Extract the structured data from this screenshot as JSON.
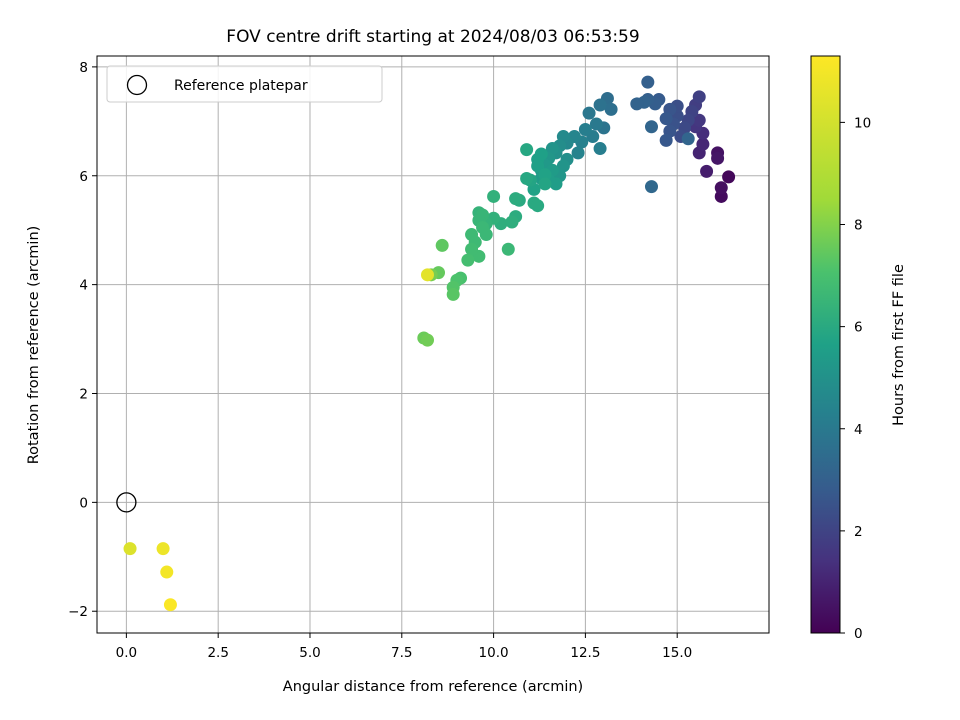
{
  "chart_data": {
    "type": "scatter",
    "title": "FOV centre drift starting at 2024/08/03 06:53:59",
    "xlabel": "Angular distance from reference (arcmin)",
    "ylabel": "Rotation from reference (arcmin)",
    "xlim": [
      -0.8,
      17.5
    ],
    "ylim": [
      -2.4,
      8.2
    ],
    "x_ticks": [
      0.0,
      2.5,
      5.0,
      7.5,
      10.0,
      12.5,
      15.0
    ],
    "x_tick_labels": [
      "0.0",
      "2.5",
      "5.0",
      "7.5",
      "10.0",
      "12.5",
      "15.0"
    ],
    "y_ticks": [
      -2,
      0,
      2,
      4,
      6,
      8
    ],
    "y_tick_labels": [
      "−2",
      "0",
      "2",
      "4",
      "6",
      "8"
    ],
    "grid": true,
    "legend": {
      "placement": "top-left",
      "entries": [
        "Reference platepar"
      ]
    },
    "reference_point": {
      "x": 0.0,
      "y": 0.0
    },
    "colorbar": {
      "label": "Hours from first FF file",
      "range": [
        0,
        11.3
      ],
      "ticks": [
        0,
        2,
        4,
        6,
        8,
        10
      ],
      "tick_labels": [
        "0",
        "2",
        "4",
        "6",
        "8",
        "10"
      ],
      "colormap": "viridis"
    },
    "points": [
      {
        "x": 16.4,
        "y": 5.98,
        "c": 0.2
      },
      {
        "x": 16.2,
        "y": 5.62,
        "c": 0.3
      },
      {
        "x": 16.2,
        "y": 5.78,
        "c": 0.4
      },
      {
        "x": 16.1,
        "y": 6.42,
        "c": 0.5
      },
      {
        "x": 16.1,
        "y": 6.32,
        "c": 0.6
      },
      {
        "x": 15.8,
        "y": 6.08,
        "c": 0.8
      },
      {
        "x": 15.6,
        "y": 6.42,
        "c": 1.0
      },
      {
        "x": 15.7,
        "y": 6.58,
        "c": 1.1
      },
      {
        "x": 15.7,
        "y": 6.78,
        "c": 1.3
      },
      {
        "x": 15.5,
        "y": 6.9,
        "c": 1.5
      },
      {
        "x": 15.6,
        "y": 7.02,
        "c": 1.6
      },
      {
        "x": 15.5,
        "y": 7.3,
        "c": 1.8
      },
      {
        "x": 15.6,
        "y": 7.45,
        "c": 1.9
      },
      {
        "x": 15.4,
        "y": 7.18,
        "c": 2.0
      },
      {
        "x": 15.3,
        "y": 7.02,
        "c": 2.1
      },
      {
        "x": 15.2,
        "y": 6.88,
        "c": 2.2
      },
      {
        "x": 15.1,
        "y": 6.72,
        "c": 2.3
      },
      {
        "x": 15.0,
        "y": 7.1,
        "c": 2.4
      },
      {
        "x": 15.0,
        "y": 7.28,
        "c": 2.4
      },
      {
        "x": 14.9,
        "y": 6.95,
        "c": 2.5
      },
      {
        "x": 14.8,
        "y": 6.82,
        "c": 2.6
      },
      {
        "x": 14.8,
        "y": 7.22,
        "c": 2.6
      },
      {
        "x": 14.7,
        "y": 7.05,
        "c": 2.7
      },
      {
        "x": 14.7,
        "y": 6.65,
        "c": 2.7
      },
      {
        "x": 14.5,
        "y": 7.4,
        "c": 2.8
      },
      {
        "x": 14.4,
        "y": 7.32,
        "c": 2.9
      },
      {
        "x": 14.2,
        "y": 7.72,
        "c": 3.0
      },
      {
        "x": 14.2,
        "y": 7.4,
        "c": 3.0
      },
      {
        "x": 14.1,
        "y": 7.35,
        "c": 3.1
      },
      {
        "x": 13.9,
        "y": 7.32,
        "c": 3.1
      },
      {
        "x": 14.3,
        "y": 6.9,
        "c": 3.2
      },
      {
        "x": 14.3,
        "y": 5.8,
        "c": 3.3
      },
      {
        "x": 15.3,
        "y": 6.68,
        "c": 3.2
      },
      {
        "x": 13.1,
        "y": 7.42,
        "c": 3.5
      },
      {
        "x": 13.2,
        "y": 7.22,
        "c": 3.6
      },
      {
        "x": 12.9,
        "y": 7.3,
        "c": 3.7
      },
      {
        "x": 13.0,
        "y": 6.88,
        "c": 3.8
      },
      {
        "x": 12.6,
        "y": 7.15,
        "c": 3.9
      },
      {
        "x": 12.8,
        "y": 6.95,
        "c": 4.0
      },
      {
        "x": 12.7,
        "y": 6.72,
        "c": 4.1
      },
      {
        "x": 12.5,
        "y": 6.85,
        "c": 4.2
      },
      {
        "x": 12.9,
        "y": 6.5,
        "c": 4.2
      },
      {
        "x": 12.4,
        "y": 6.62,
        "c": 4.3
      },
      {
        "x": 12.3,
        "y": 6.42,
        "c": 4.4
      },
      {
        "x": 12.2,
        "y": 6.72,
        "c": 4.5
      },
      {
        "x": 12.0,
        "y": 6.6,
        "c": 4.6
      },
      {
        "x": 11.9,
        "y": 6.72,
        "c": 4.7
      },
      {
        "x": 11.8,
        "y": 6.55,
        "c": 4.8
      },
      {
        "x": 12.0,
        "y": 6.3,
        "c": 4.9
      },
      {
        "x": 11.7,
        "y": 6.42,
        "c": 5.0
      },
      {
        "x": 11.9,
        "y": 6.18,
        "c": 5.1
      },
      {
        "x": 11.6,
        "y": 6.5,
        "c": 5.1
      },
      {
        "x": 11.5,
        "y": 6.32,
        "c": 5.2
      },
      {
        "x": 11.8,
        "y": 6.0,
        "c": 5.2
      },
      {
        "x": 11.4,
        "y": 6.2,
        "c": 5.3
      },
      {
        "x": 11.3,
        "y": 6.1,
        "c": 5.3
      },
      {
        "x": 11.6,
        "y": 6.1,
        "c": 5.4
      },
      {
        "x": 11.3,
        "y": 5.95,
        "c": 5.4
      },
      {
        "x": 11.7,
        "y": 5.85,
        "c": 5.5
      },
      {
        "x": 11.5,
        "y": 5.92,
        "c": 5.5
      },
      {
        "x": 11.2,
        "y": 6.3,
        "c": 5.6
      },
      {
        "x": 11.3,
        "y": 6.4,
        "c": 5.6
      },
      {
        "x": 11.2,
        "y": 6.18,
        "c": 5.6
      },
      {
        "x": 11.4,
        "y": 6.02,
        "c": 5.7
      },
      {
        "x": 11.1,
        "y": 5.75,
        "c": 5.7
      },
      {
        "x": 11.4,
        "y": 5.85,
        "c": 5.8
      },
      {
        "x": 11.0,
        "y": 5.92,
        "c": 5.8
      },
      {
        "x": 10.9,
        "y": 6.48,
        "c": 5.9
      },
      {
        "x": 10.9,
        "y": 5.95,
        "c": 5.9
      },
      {
        "x": 10.7,
        "y": 5.55,
        "c": 6.0
      },
      {
        "x": 11.1,
        "y": 5.5,
        "c": 6.0
      },
      {
        "x": 11.2,
        "y": 5.45,
        "c": 6.0
      },
      {
        "x": 10.6,
        "y": 5.58,
        "c": 6.1
      },
      {
        "x": 10.6,
        "y": 5.25,
        "c": 6.1
      },
      {
        "x": 10.2,
        "y": 5.12,
        "c": 6.2
      },
      {
        "x": 10.5,
        "y": 5.15,
        "c": 6.2
      },
      {
        "x": 10.0,
        "y": 5.62,
        "c": 6.3
      },
      {
        "x": 10.0,
        "y": 5.22,
        "c": 6.3
      },
      {
        "x": 9.8,
        "y": 5.12,
        "c": 6.4
      },
      {
        "x": 9.6,
        "y": 5.32,
        "c": 6.4
      },
      {
        "x": 9.7,
        "y": 5.28,
        "c": 6.5
      },
      {
        "x": 9.6,
        "y": 5.18,
        "c": 6.5
      },
      {
        "x": 9.8,
        "y": 4.92,
        "c": 6.6
      },
      {
        "x": 9.7,
        "y": 5.05,
        "c": 6.6
      },
      {
        "x": 10.4,
        "y": 4.65,
        "c": 6.6
      },
      {
        "x": 9.4,
        "y": 4.92,
        "c": 6.7
      },
      {
        "x": 9.5,
        "y": 4.78,
        "c": 6.7
      },
      {
        "x": 9.6,
        "y": 4.52,
        "c": 6.8
      },
      {
        "x": 9.4,
        "y": 4.65,
        "c": 6.8
      },
      {
        "x": 9.3,
        "y": 4.45,
        "c": 6.9
      },
      {
        "x": 9.1,
        "y": 4.12,
        "c": 7.0
      },
      {
        "x": 9.0,
        "y": 4.08,
        "c": 7.1
      },
      {
        "x": 8.9,
        "y": 3.95,
        "c": 7.2
      },
      {
        "x": 8.9,
        "y": 3.82,
        "c": 7.3
      },
      {
        "x": 8.6,
        "y": 4.72,
        "c": 7.4
      },
      {
        "x": 8.5,
        "y": 4.22,
        "c": 7.5
      },
      {
        "x": 8.1,
        "y": 3.02,
        "c": 7.6
      },
      {
        "x": 8.2,
        "y": 2.98,
        "c": 7.7
      },
      {
        "x": 8.3,
        "y": 4.18,
        "c": 7.8
      },
      {
        "x": 8.2,
        "y": 4.18,
        "c": 10.5
      },
      {
        "x": 0.1,
        "y": -0.85,
        "c": 10.3
      },
      {
        "x": 1.0,
        "y": -0.85,
        "c": 10.8
      },
      {
        "x": 1.1,
        "y": -1.28,
        "c": 11.0
      },
      {
        "x": 1.2,
        "y": -1.88,
        "c": 11.2
      }
    ]
  }
}
